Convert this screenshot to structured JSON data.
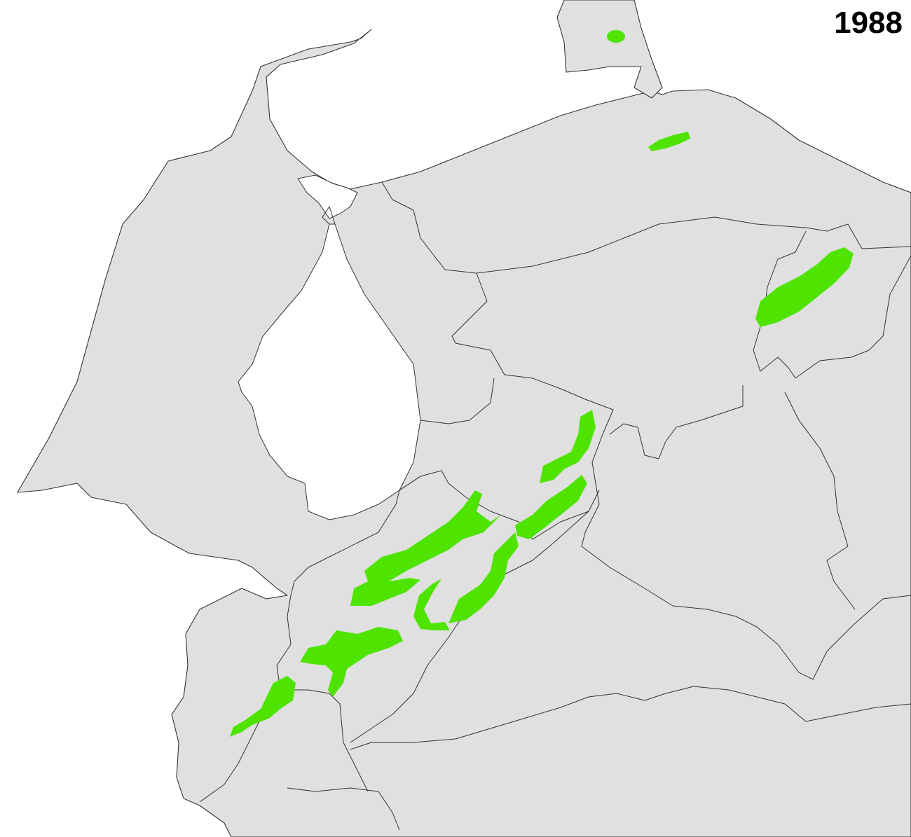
{
  "map": {
    "year": "1988",
    "colors": {
      "land": "#e0e0e0",
      "border": "#333333",
      "water": "#ffffff",
      "highlight": "#4fe300"
    },
    "highlight_region_count": 9
  }
}
